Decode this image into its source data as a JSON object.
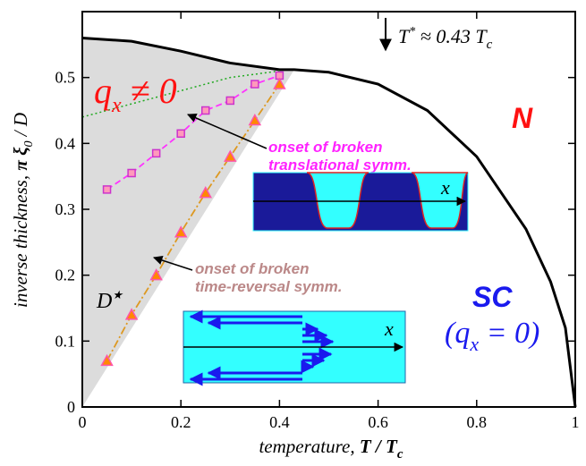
{
  "chart_data": {
    "type": "line",
    "xlabel": [
      "temperature,  ",
      "T / T",
      "c"
    ],
    "ylabel": [
      "inverse thickness,  ",
      "π ξ",
      "0",
      " / D"
    ],
    "xlim": [
      0,
      1
    ],
    "ylim": [
      0,
      0.6
    ],
    "xticks": [
      0,
      0.2,
      0.4,
      0.6,
      0.8,
      1
    ],
    "yticks": [
      0,
      0.1,
      0.2,
      0.3,
      0.4,
      0.5
    ],
    "shaded_region": {
      "color": "#dcdcdc",
      "x": [
        0,
        0.43,
        0.4,
        0.3,
        0.2,
        0.1,
        0
      ],
      "values": [
        0,
        0.512,
        0.512,
        0.522,
        0.54,
        0.555,
        0.56
      ]
    },
    "series": [
      {
        "color": "#000000",
        "dash": "none",
        "width": 3,
        "marker": "none",
        "x": [
          0,
          0.1,
          0.2,
          0.3,
          0.4,
          0.43,
          0.5,
          0.6,
          0.7,
          0.8,
          0.9,
          0.95,
          0.98,
          1.0
        ],
        "values": [
          0.56,
          0.555,
          0.54,
          0.522,
          0.512,
          0.512,
          0.508,
          0.49,
          0.45,
          0.38,
          0.27,
          0.19,
          0.12,
          0
        ]
      },
      {
        "color": "#22aa22",
        "dash": "2 3",
        "width": 1.5,
        "marker": "none",
        "x": [
          0,
          0.1,
          0.2,
          0.3,
          0.4
        ],
        "values": [
          0.44,
          0.46,
          0.48,
          0.5,
          0.51
        ]
      },
      {
        "color": "#ff33ff",
        "dash": "7 4",
        "width": 1.8,
        "marker": "square",
        "marker_fill": "#ff99bb",
        "marker_stroke": "#cc33cc",
        "x": [
          0.05,
          0.1,
          0.15,
          0.2,
          0.25,
          0.3,
          0.35,
          0.4
        ],
        "values": [
          0.33,
          0.355,
          0.385,
          0.415,
          0.45,
          0.465,
          0.49,
          0.503
        ]
      },
      {
        "color": "#dd9922",
        "dash": "9 3 2 3",
        "width": 1.8,
        "marker": "triangle",
        "marker_fill": "#ff8800",
        "marker_stroke": "#ff55aa",
        "x": [
          0.05,
          0.1,
          0.15,
          0.2,
          0.25,
          0.3,
          0.35,
          0.4
        ],
        "values": [
          0.07,
          0.14,
          0.2,
          0.265,
          0.325,
          0.38,
          0.435,
          0.49
        ]
      }
    ],
    "annotations": {
      "t_star": [
        "T",
        "*",
        " ≈ 0.43 T",
        "c"
      ],
      "q_nonzero": [
        "q",
        "x",
        " ≠ 0"
      ],
      "normal": "N",
      "sc": "SC",
      "q_zero": [
        "(q",
        "x",
        " = 0)"
      ],
      "onset_translational": [
        "onset of broken",
        "translational symm."
      ],
      "onset_time_reversal": [
        "onset of broken",
        "time-reversal symm."
      ],
      "d_star": [
        "D",
        "★"
      ],
      "inset_top_axis": "x",
      "inset_bottom_axis": "x"
    }
  }
}
